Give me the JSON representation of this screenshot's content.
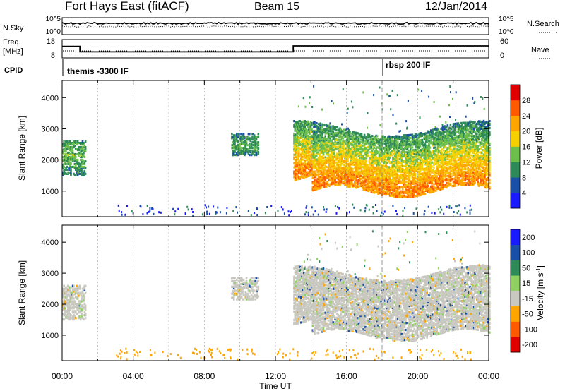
{
  "header": {
    "station": "Fort Hays East (fitACF)",
    "beam": "Beam 15",
    "date": "12/Jan/2014"
  },
  "strip_labels": {
    "nsky": "N.Sky",
    "nsearch": "N.Search",
    "freq_line1": "Freq.",
    "freq_line2": "[MHz]",
    "nave": "Nave",
    "cpid": "CPID",
    "nsky_top": "10^5",
    "nsky_bottom": "10^0",
    "freq_top": "18",
    "freq_bottom": "8",
    "nave_top": "60",
    "nave_bottom": "0"
  },
  "cpid_segments": [
    {
      "start_hour": 0,
      "label": "themis -3300 IF"
    },
    {
      "start_hour": 18,
      "label": "rbsp 200 IF"
    }
  ],
  "colors": {
    "power": [
      "#1a1aff",
      "#1a4fa8",
      "#2e8b57",
      "#6cbf4a",
      "#f5d000",
      "#ffa500",
      "#ff5a00",
      "#e00000"
    ],
    "velocity": [
      "#e00000",
      "#ff5a00",
      "#ffa500",
      "#c8c8c0",
      "#8fd060",
      "#2e8b57",
      "#1a4fa8",
      "#1a1aff"
    ],
    "ground_scatter": "#c8c8c0"
  },
  "chart_data": {
    "type": "heatmap",
    "x_axis": {
      "label": "Time UT",
      "range_hours": [
        0,
        24
      ],
      "ticks": [
        "00:00",
        "04:00",
        "08:00",
        "12:00",
        "16:00",
        "20:00",
        "00:00"
      ]
    },
    "y_axis": {
      "label": "Slant Range [km]",
      "range": [
        180,
        4550
      ],
      "ticks": [
        1000,
        2000,
        3000,
        4000
      ]
    },
    "panels": [
      {
        "name": "power",
        "colorbar_label": "Power [dB]",
        "colorbar_ticks": [
          "28",
          "24",
          "20",
          "16",
          "12",
          "8",
          "4"
        ],
        "range": [
          0,
          32
        ]
      },
      {
        "name": "velocity",
        "colorbar_label": "Velocity [m s^-1]",
        "colorbar_ticks": [
          "200",
          "100",
          "50",
          "15",
          "-15",
          "-50",
          "-100",
          "-200"
        ],
        "range": [
          -250,
          250
        ]
      }
    ],
    "cpid_change_hour": 18,
    "frequency_mhz": [
      {
        "start_hour": 0,
        "end_hour": 1,
        "value": 14.5
      },
      {
        "start_hour": 1,
        "end_hour": 13,
        "value": 11
      },
      {
        "start_hour": 13,
        "end_hour": 24,
        "value": 14.8
      }
    ],
    "scatter_regions": [
      {
        "t0": 0.0,
        "t1": 1.3,
        "r0": 1500,
        "r1": 2600,
        "peak_range": 2150,
        "power": 14,
        "velocity_class": "ground"
      },
      {
        "t0": 9.5,
        "t1": 11.0,
        "r0": 2150,
        "r1": 2850,
        "peak_range": 2450,
        "power": 12,
        "velocity_class": "ground"
      },
      {
        "t0": 13.0,
        "t1": 24.0,
        "r0": 1000,
        "r1": 3000,
        "peak_range": 1300,
        "power": 24,
        "velocity_class": "ground"
      }
    ]
  }
}
